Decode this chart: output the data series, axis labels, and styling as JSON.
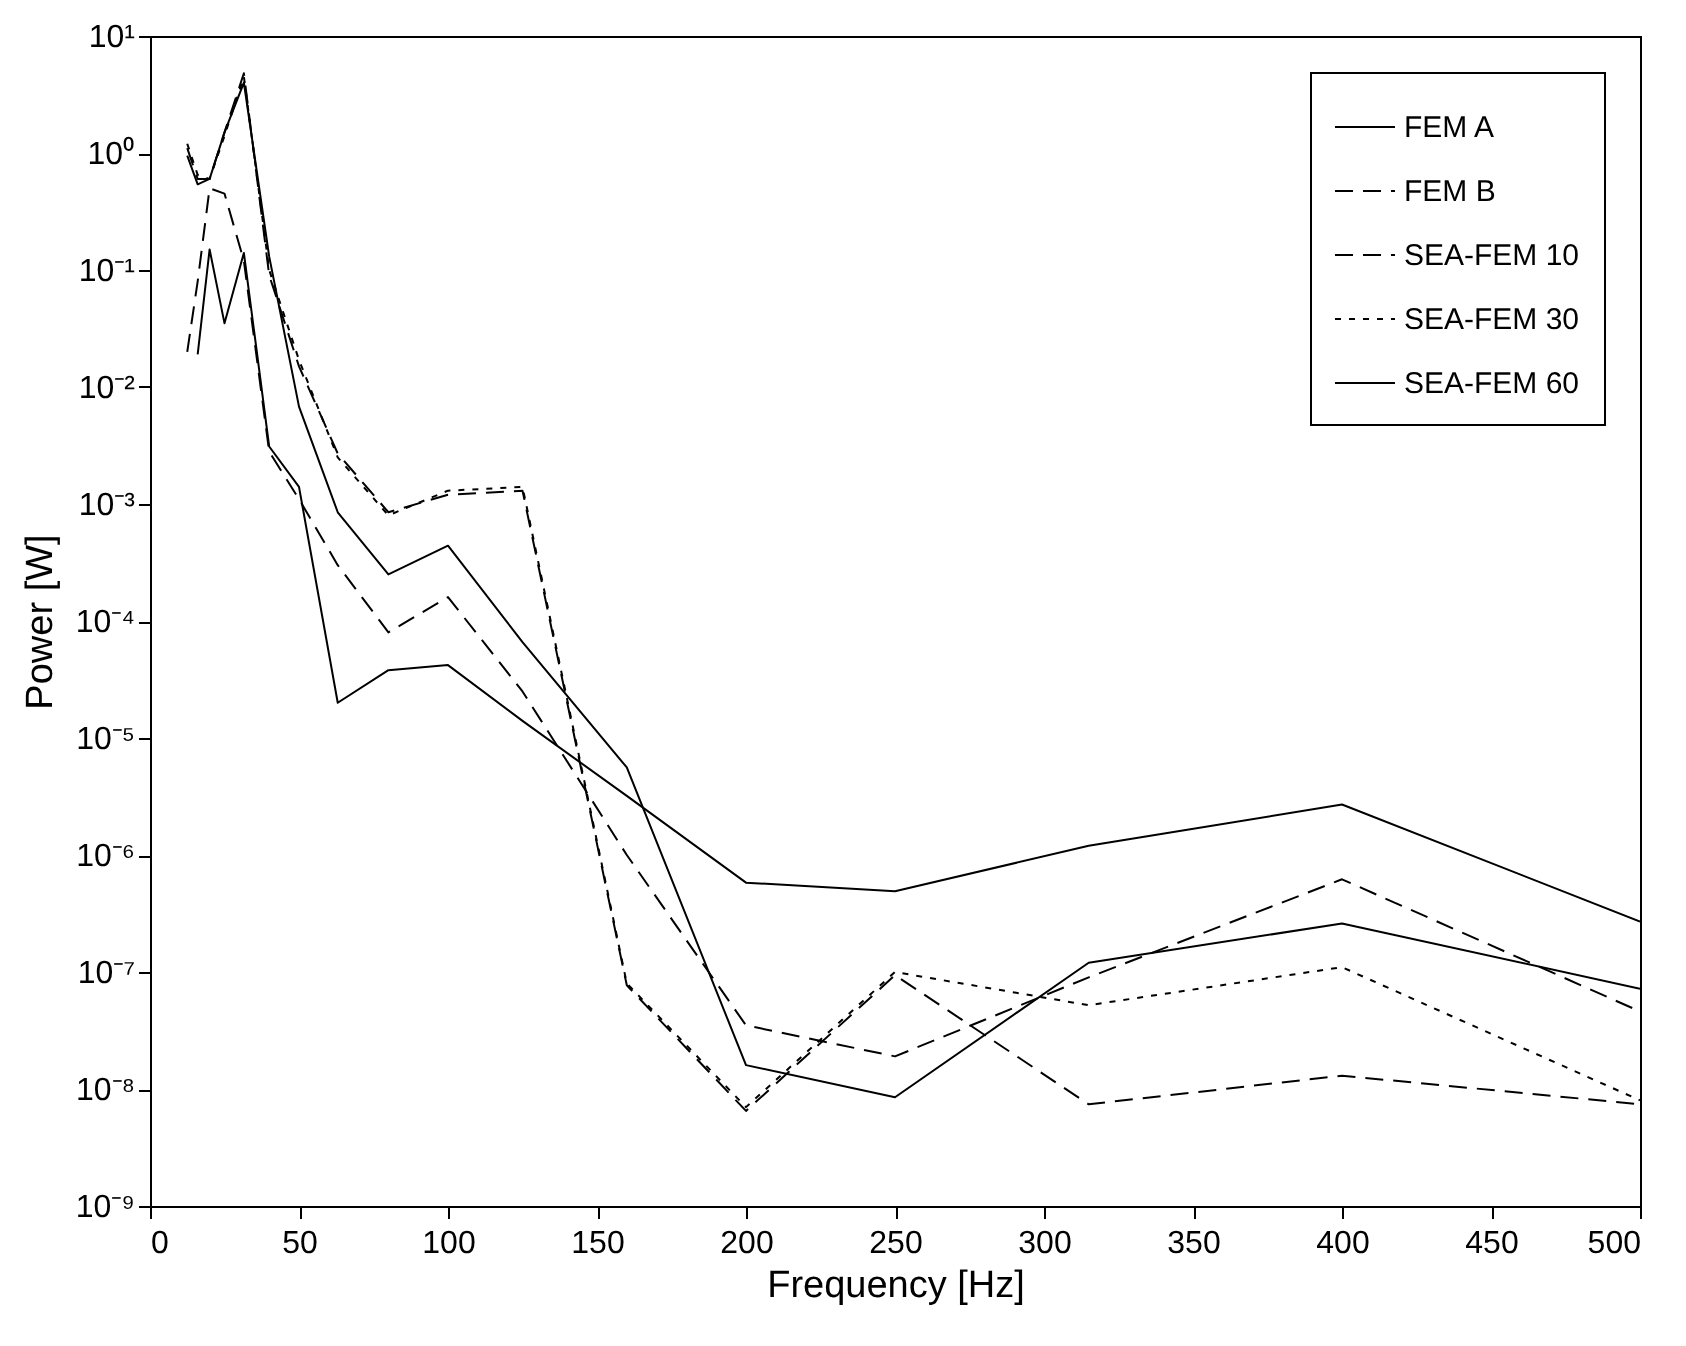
{
  "chart_data": {
    "type": "line",
    "xlabel": "Frequency [Hz]",
    "ylabel": "Power [W]",
    "log": "y",
    "xlim": [
      0,
      500
    ],
    "xticks": [
      0,
      50,
      100,
      150,
      200,
      250,
      300,
      350,
      400,
      450,
      500
    ],
    "ylim": [
      1e-09,
      10
    ],
    "yticks": [
      {
        "value": 1e-09,
        "label": "10⁻⁹"
      },
      {
        "value": 1e-08,
        "label": "10⁻⁸"
      },
      {
        "value": 1e-07,
        "label": "10⁻⁷"
      },
      {
        "value": 1e-06,
        "label": "10⁻⁶"
      },
      {
        "value": 1e-05,
        "label": "10⁻⁵"
      },
      {
        "value": 0.0001,
        "label": "10⁻⁴"
      },
      {
        "value": 0.001,
        "label": "10⁻³"
      },
      {
        "value": 0.01,
        "label": "10⁻²"
      },
      {
        "value": 0.1,
        "label": "10⁻¹"
      },
      {
        "value": 1,
        "label": "10⁰"
      },
      {
        "value": 10,
        "label": "10¹"
      }
    ],
    "grid": false,
    "legend": "top right",
    "marker": "none",
    "series": [
      {
        "name": "FEM A",
        "color": "#000000",
        "line_style": "solid",
        "x": [
          16,
          20,
          25,
          31.5,
          40,
          50,
          63,
          80,
          100,
          125,
          160,
          200,
          250,
          315,
          400,
          500
        ],
        "values": [
          0.019,
          0.15,
          0.035,
          0.14,
          0.0031,
          0.0014,
          2e-05,
          3.8e-05,
          4.2e-05,
          1.4e-05,
          3.2e-06,
          5.8e-07,
          4.9e-07,
          1.2e-06,
          2.7e-06,
          2.7e-07
        ]
      },
      {
        "name": "FEM B",
        "color": "#000000",
        "line_style": "dashed",
        "x": [
          12.5,
          16,
          20,
          25,
          31.5,
          40,
          50,
          63,
          80,
          100,
          125,
          160,
          200,
          250,
          315,
          400,
          500
        ],
        "values": [
          0.02,
          0.08,
          0.5,
          0.45,
          0.12,
          0.0028,
          0.0011,
          0.0003,
          8e-05,
          0.00016,
          2.5e-05,
          1e-06,
          3.5e-08,
          1.9e-08,
          9e-08,
          6.2e-07,
          4.6e-08
        ]
      },
      {
        "name": "SEA-FEM 10",
        "color": "#000000",
        "line_style": "dashed",
        "x": [
          12.5,
          16,
          20,
          25,
          31.5,
          40,
          50,
          63,
          80,
          100,
          125,
          160,
          200,
          250,
          315,
          400,
          500
        ],
        "values": [
          1.1,
          0.6,
          0.6,
          1.5,
          4.8,
          0.09,
          0.015,
          0.0027,
          0.00085,
          0.0012,
          0.0013,
          7.7e-08,
          6.5e-09,
          9.4e-08,
          7.4e-09,
          1.3e-08,
          7.4e-09
        ]
      },
      {
        "name": "SEA-FEM 30",
        "color": "#000000",
        "line_style": "dotted",
        "x": [
          12.5,
          16,
          20,
          25,
          31.5,
          40,
          50,
          63,
          80,
          100,
          125,
          160,
          200,
          250,
          315,
          400,
          500
        ],
        "values": [
          1.2,
          0.65,
          0.6,
          1.4,
          4.5,
          0.1,
          0.017,
          0.0025,
          0.0008,
          0.0013,
          0.0014,
          8e-08,
          7e-09,
          1e-07,
          5.2e-08,
          1.1e-07,
          8e-09
        ]
      },
      {
        "name": "SEA-FEM 60",
        "color": "#000000",
        "line_style": "solid",
        "x": [
          12.5,
          16,
          20,
          25,
          31.5,
          40,
          50,
          63,
          80,
          100,
          125,
          160,
          200,
          250,
          315,
          400,
          500
        ],
        "values": [
          0.95,
          0.54,
          0.6,
          1.5,
          4,
          0.13,
          0.0068,
          0.00085,
          0.00025,
          0.00044,
          6.6e-05,
          5.6e-06,
          1.6e-08,
          8.5e-09,
          1.2e-07,
          2.6e-07,
          7.2e-08
        ]
      }
    ]
  }
}
